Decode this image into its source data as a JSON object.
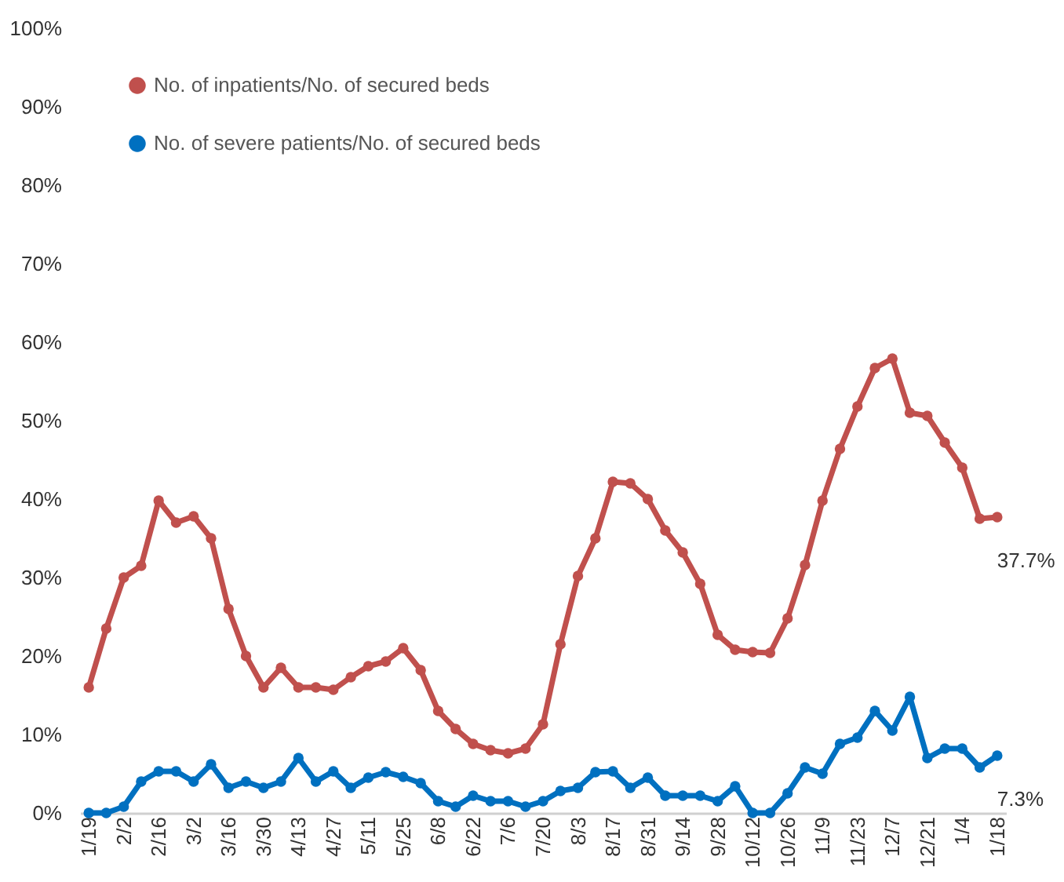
{
  "chart_data": {
    "type": "line",
    "categories": [
      "1/19",
      null,
      "2/2",
      null,
      "2/16",
      null,
      "3/2",
      null,
      "3/16",
      null,
      "3/30",
      null,
      "4/13",
      null,
      "4/27",
      null,
      "5/11",
      null,
      "5/25",
      null,
      "6/8",
      null,
      "6/22",
      null,
      "7/6",
      null,
      "7/20",
      null,
      "8/3",
      null,
      "8/17",
      null,
      "8/31",
      null,
      "9/14",
      null,
      "9/28",
      null,
      "10/12",
      null,
      "10/26",
      null,
      "11/9",
      null,
      "11/23",
      null,
      "12/7",
      null,
      "12/21",
      null,
      "1/4",
      null,
      "1/18"
    ],
    "series": [
      {
        "name": "No. of inpatients/No. of secured beds",
        "color": "#c0504d",
        "values": [
          16,
          23.5,
          30,
          31.5,
          39.8,
          37,
          37.8,
          35,
          26,
          20,
          16,
          18.5,
          16,
          16,
          15.7,
          17.3,
          18.7,
          19.3,
          21,
          18.2,
          13,
          10.7,
          8.8,
          8,
          7.6,
          8.2,
          11.3,
          21.5,
          30.2,
          35,
          42.2,
          42,
          40,
          36,
          33.2,
          29.2,
          22.7,
          20.8,
          20.5,
          20.4,
          24.8,
          31.6,
          39.8,
          46.4,
          51.8,
          56.7,
          57.9,
          51,
          50.6,
          47.2,
          44,
          37.5,
          37.7
        ]
      },
      {
        "name": "No. of severe patients/No. of secured beds",
        "color": "#0070c0",
        "values": [
          0,
          0,
          0.8,
          4,
          5.3,
          5.3,
          4,
          6.2,
          3.2,
          4,
          3.2,
          4,
          7,
          4,
          5.3,
          3.2,
          4.5,
          5.2,
          4.6,
          3.8,
          1.5,
          0.8,
          2.2,
          1.5,
          1.5,
          0.8,
          1.5,
          2.8,
          3.2,
          5.2,
          5.3,
          3.2,
          4.5,
          2.2,
          2.2,
          2.2,
          1.5,
          3.4,
          0,
          0,
          2.5,
          5.8,
          5,
          8.8,
          9.6,
          13,
          10.5,
          14.8,
          7,
          8.2,
          8.2,
          5.8,
          7.3
        ]
      }
    ],
    "ylim": [
      0,
      100
    ],
    "yticks": [
      {
        "value": 0,
        "label": "0%"
      },
      {
        "value": 10,
        "label": "10%"
      },
      {
        "value": 20,
        "label": "20%"
      },
      {
        "value": 30,
        "label": "30%"
      },
      {
        "value": 40,
        "label": "40%"
      },
      {
        "value": 50,
        "label": "50%"
      },
      {
        "value": 60,
        "label": "60%"
      },
      {
        "value": 70,
        "label": "70%"
      },
      {
        "value": 80,
        "label": "80%"
      },
      {
        "value": 90,
        "label": "90%"
      },
      {
        "value": 100,
        "label": "100%"
      }
    ],
    "annotations": [
      {
        "text": "37.7%",
        "x": "1/18",
        "y": 37.7
      },
      {
        "text": "7.3%",
        "x": "1/18",
        "y": 7.3
      }
    ],
    "grid": false,
    "legend": "top left",
    "marker": "circle",
    "line_style": "solid"
  }
}
